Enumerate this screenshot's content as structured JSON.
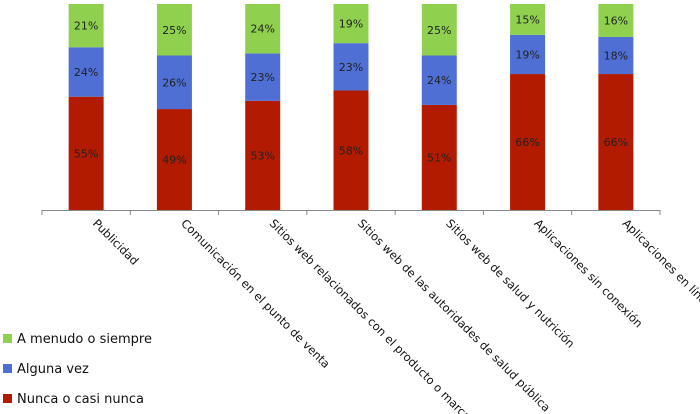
{
  "chart_data": {
    "type": "bar",
    "stacked": true,
    "percent_stacked": true,
    "categories": [
      "Publicidad",
      "Comunicación en el punto de venta",
      "Sitios web relacionados con el producto o marca",
      "Sitios web de las autoridades de salud pública",
      "Sitios web de salud y nutrición",
      "Aplicaciones sin conexión",
      "Aplicaciones en línea"
    ],
    "series": [
      {
        "name": "Nunca o casi nunca",
        "values": [
          55,
          49,
          53,
          58,
          51,
          66,
          66
        ],
        "labels": [
          "55%",
          "49%",
          "53%",
          "58%",
          "51%",
          "66%",
          "66%"
        ],
        "color": "#b31b00"
      },
      {
        "name": "Alguna vez",
        "values": [
          24,
          26,
          23,
          23,
          24,
          19,
          18
        ],
        "labels": [
          "24%",
          "26%",
          "23%",
          "23%",
          "24%",
          "19%",
          "18%"
        ],
        "color": "#4f6fd4"
      },
      {
        "name": "A menudo o siempre",
        "values": [
          21,
          25,
          24,
          19,
          25,
          15,
          16
        ],
        "labels": [
          "21%",
          "25%",
          "24%",
          "19%",
          "25%",
          "15%",
          "16%"
        ],
        "color": "#8fd14f"
      }
    ],
    "legend_position": "bottom-left",
    "grid": false,
    "ylim": [
      0,
      100
    ]
  }
}
